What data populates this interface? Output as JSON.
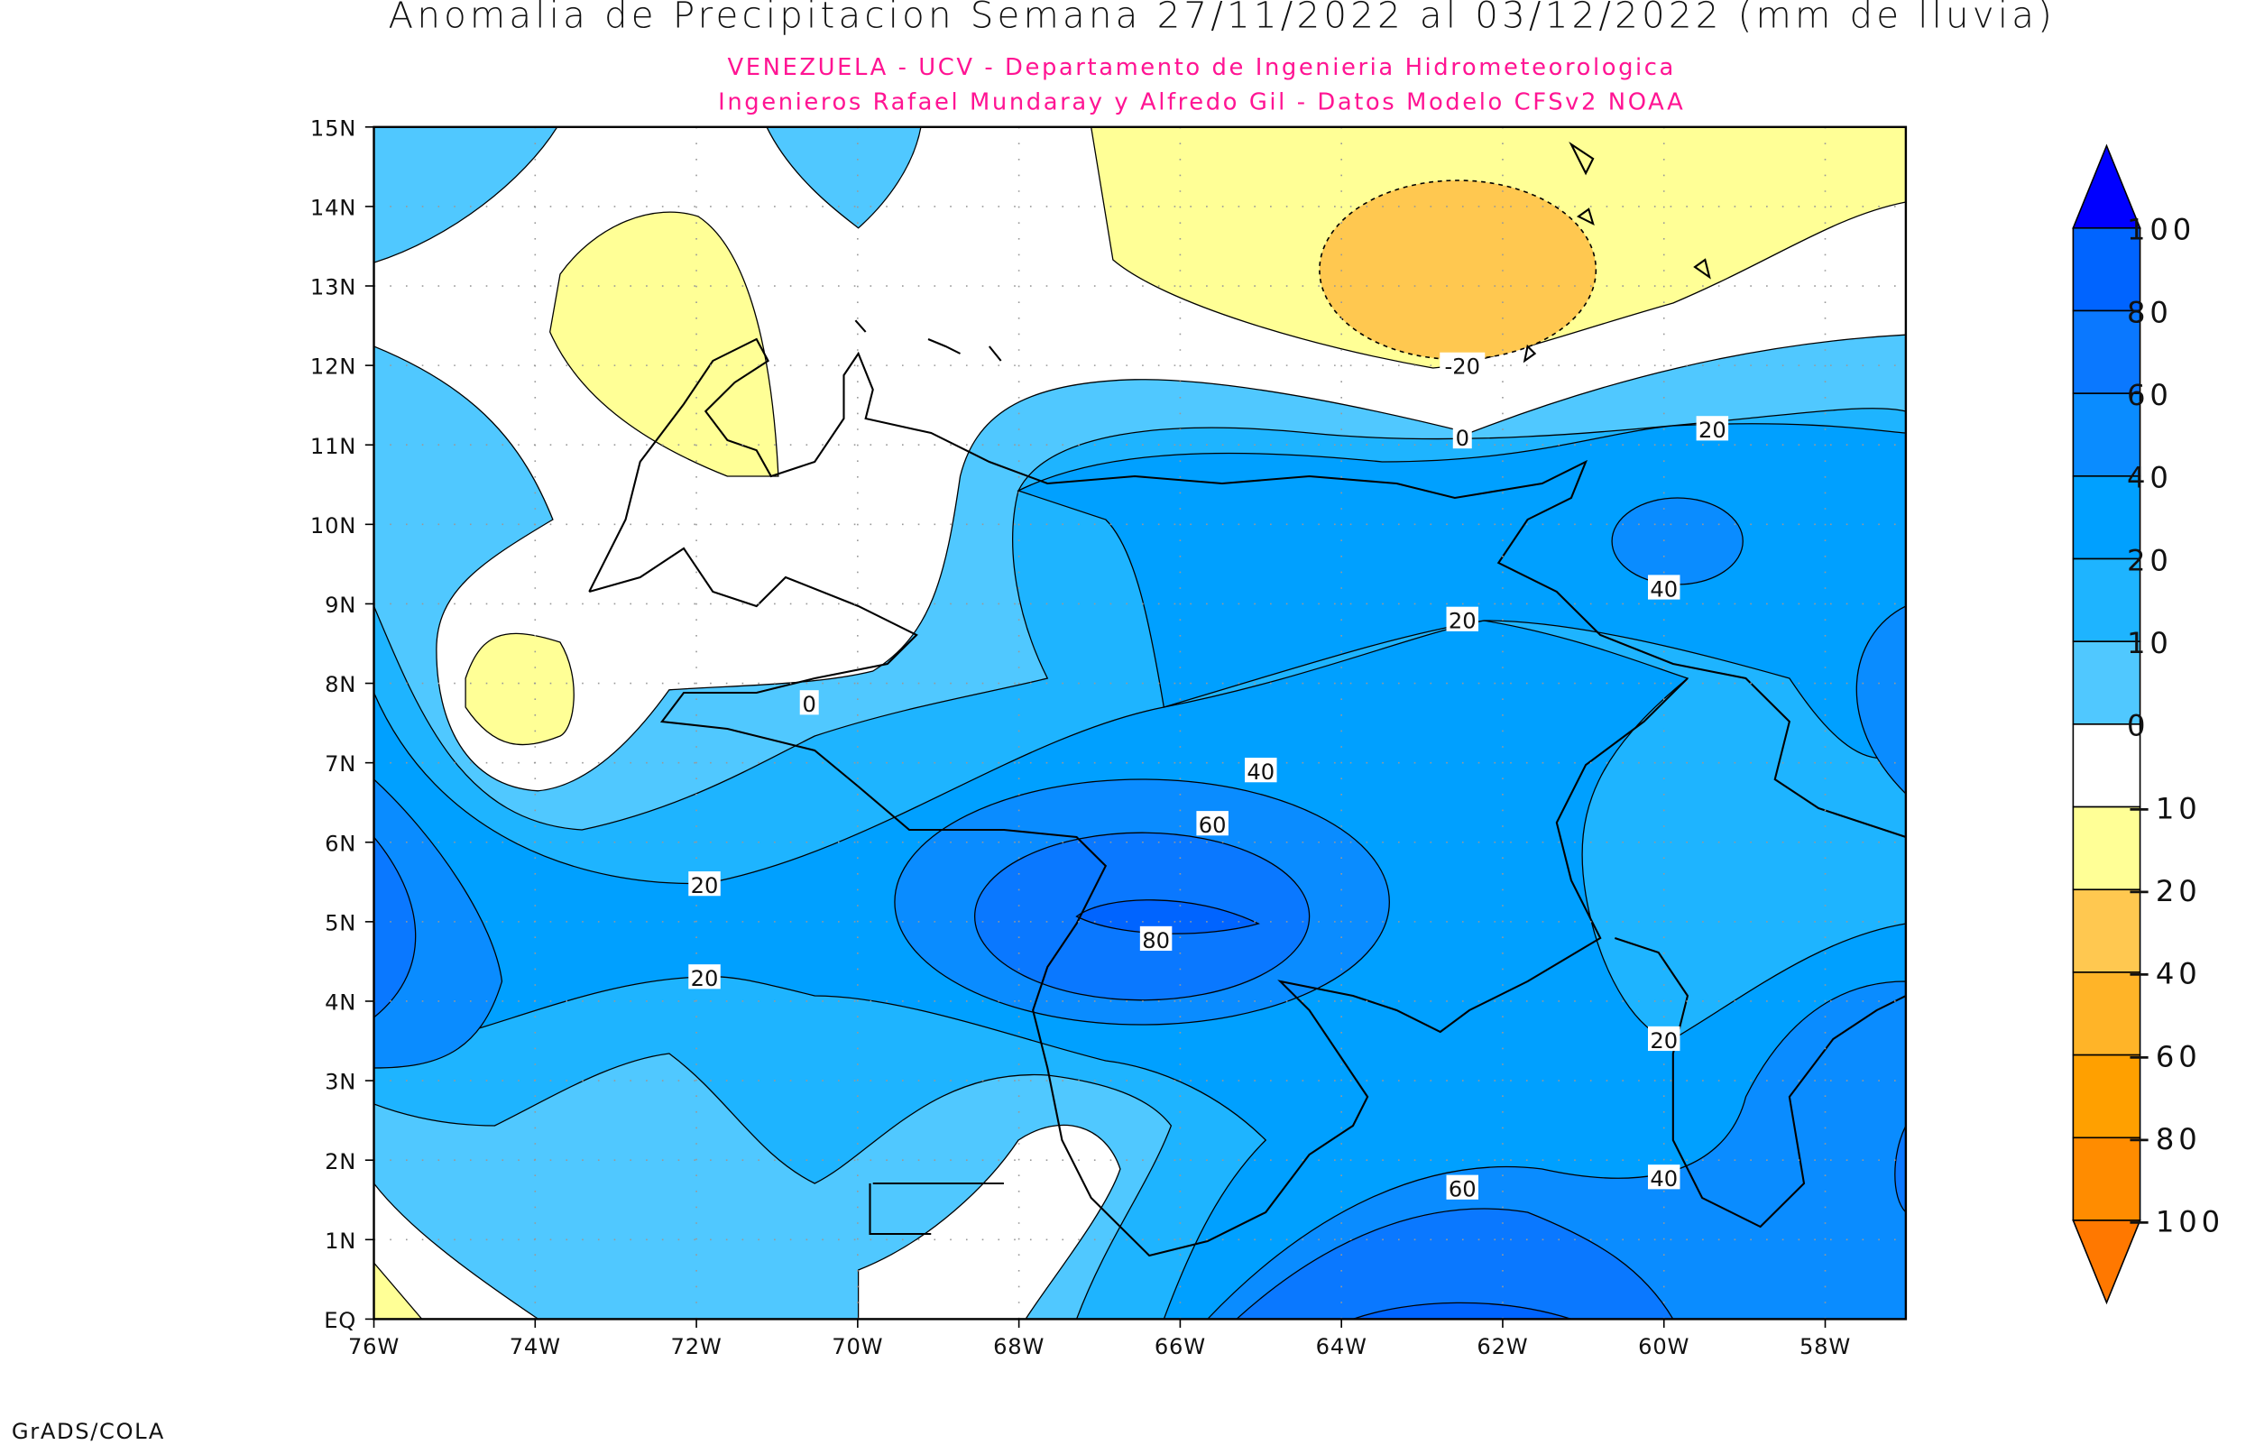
{
  "title": "Anomalia de Precipitacion Semana 27/11/2022 al 03/12/2022 (mm de lluvia)",
  "subtitle_1": "VENEZUELA - UCV - Departamento de Ingenieria Hidrometeorologica",
  "subtitle_2": "Ingenieros Rafael Mundaray y Alfredo Gil - Datos Modelo CFSv2 NOAA",
  "footer": "GrADS/COLA",
  "chart_data": {
    "type": "heatmap",
    "subtype": "filled-contour-map",
    "title": "Anomalia de Precipitacion Semana 27/11/2022 al 03/12/2022 (mm de lluvia)",
    "units": "mm de lluvia",
    "xlim": [
      -76,
      -57
    ],
    "ylim": [
      0,
      15
    ],
    "grid": true,
    "x_ticks": [
      "76W",
      "74W",
      "72W",
      "70W",
      "68W",
      "66W",
      "64W",
      "62W",
      "60W",
      "58W"
    ],
    "y_ticks": [
      "EQ",
      "1N",
      "2N",
      "3N",
      "4N",
      "5N",
      "6N",
      "7N",
      "8N",
      "9N",
      "10N",
      "11N",
      "12N",
      "13N",
      "14N",
      "15N"
    ],
    "colorbar": {
      "position": "right",
      "labels": [
        "100",
        "80",
        "60",
        "40",
        "20",
        "10",
        "0",
        "-10",
        "-20",
        "-40",
        "-60",
        "-80",
        "-100"
      ],
      "colors": [
        "#0000ff",
        "#0064ff",
        "#0a78ff",
        "#0a8cff",
        "#00a0ff",
        "#1eb4ff",
        "#50c8ff",
        "#ffffff",
        "#ffff96",
        "#ffc850",
        "#ffb428",
        "#ffa000",
        "#ff8c00",
        "#ff7800"
      ]
    },
    "contour_labels": [
      {
        "value": "-20",
        "lon": -62.5,
        "lat": 12.0
      },
      {
        "value": "0",
        "lon": -62.5,
        "lat": 11.1
      },
      {
        "value": "20",
        "lon": -59.4,
        "lat": 11.2
      },
      {
        "value": "40",
        "lon": -60.0,
        "lat": 9.2
      },
      {
        "value": "20",
        "lon": -62.5,
        "lat": 8.8
      },
      {
        "value": "0",
        "lon": -70.6,
        "lat": 7.75
      },
      {
        "value": "40",
        "lon": -65.0,
        "lat": 6.9
      },
      {
        "value": "60",
        "lon": -65.6,
        "lat": 6.23
      },
      {
        "value": "20",
        "lon": -71.9,
        "lat": 5.47
      },
      {
        "value": "80",
        "lon": -66.3,
        "lat": 4.78
      },
      {
        "value": "20",
        "lon": -71.9,
        "lat": 4.3
      },
      {
        "value": "20",
        "lon": -60.0,
        "lat": 3.52
      },
      {
        "value": "40",
        "lon": -60.0,
        "lat": 1.78
      },
      {
        "value": "60",
        "lon": -62.5,
        "lat": 1.65
      }
    ],
    "features": [
      {
        "level_range": [
          -40,
          -20
        ],
        "description_center": {
          "lon": -62.5,
          "lat": 13.3
        }
      },
      {
        "level_range": [
          80,
          100
        ],
        "description_center": {
          "lon": -66.3,
          "lat": 5.0
        }
      }
    ]
  }
}
